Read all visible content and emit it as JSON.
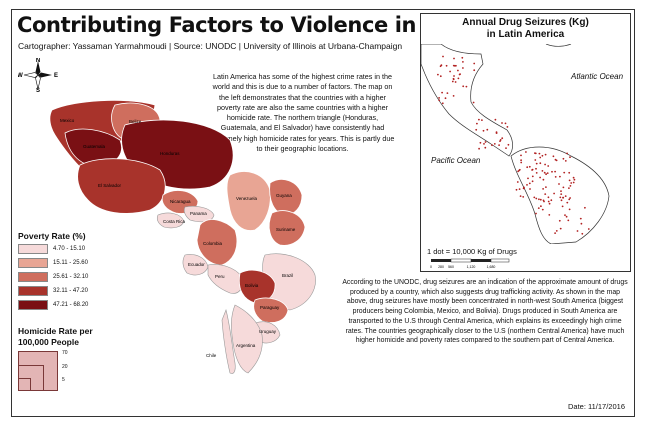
{
  "title": "Contributing Factors to Violence in Latin America",
  "subtitle": "Cartographer: Yassaman Yarmahmoudi | Source: UNODC | University of Illinois at Urbana-Champaign",
  "compass": {
    "n": "N",
    "s": "S",
    "e": "E",
    "w": "W"
  },
  "intro_text": "Latin America has some of the highest crime rates in the world and this is due to a number of factors. The map on the left demonstrates that the countries with a higher poverty rate are also the same countries with a higher homicide rate. The northern triangle (Honduras, Guatemala, and El Salvador) have consistently had extremely high homicide rates for years. This is partly due to their geographic locations.",
  "countries": {
    "mexico": "Mexico",
    "belize": "Belize",
    "guatemala": "Guatemala",
    "honduras": "Honduras",
    "el_salvador": "El Salvador",
    "nicaragua": "Nicaragua",
    "costa_rica": "Costa Rica",
    "panama": "Panama",
    "venezuela": "Venezuela",
    "guyana": "Guyana",
    "suriname": "Suriname",
    "colombia": "Colombia",
    "ecuador": "Ecuador",
    "peru": "Peru",
    "brazil": "Brazil",
    "bolivia": "Bolivia",
    "paraguay": "Paraguay",
    "uruguay": "Uruguay",
    "argentina": "Argentina",
    "chile": "Chile"
  },
  "poverty_legend": {
    "title": "Poverty Rate (%)",
    "classes": [
      {
        "label": "4.70 - 15.10",
        "color": "#f6dada"
      },
      {
        "label": "15.11 - 25.60",
        "color": "#e8a594"
      },
      {
        "label": "25.61 - 32.10",
        "color": "#cf6e5e"
      },
      {
        "label": "32.11 - 47.20",
        "color": "#a8332b"
      },
      {
        "label": "47.21 - 68.20",
        "color": "#7a1014"
      }
    ]
  },
  "homicide_legend": {
    "title": "Homicide Rate per 100,000 People",
    "values": [
      "70",
      "20",
      "5"
    ]
  },
  "inset": {
    "title_line1": "Annual Drug Seizures (Kg)",
    "title_line2": "in Latin America",
    "atlantic": "Atlantic Ocean",
    "pacific": "Pacific Ocean",
    "dot_label": "1 dot = 10,000 Kg of Drugs",
    "scale_labels": [
      "0",
      "280",
      "560",
      "1,120",
      "1,680"
    ]
  },
  "body_text": "According to the UNODC, drug seizures are an indication of the approximate amount of drugs produced by a country, which also suggests drug trafficking activity. As shown in the map above, drug seizures have mostly been concentrated in north-west South America (biggest producers being Colombia, Mexico, and Bolivia). Drugs produced in South America are transported to the U.S through Central America, which explains its exceedingly high crime rates. The countries geographically closer to the U.S (northern Central America) have much higher homicide and poverty rates compared to the southern part of Central America.",
  "date": "Date: 11/17/2016"
}
